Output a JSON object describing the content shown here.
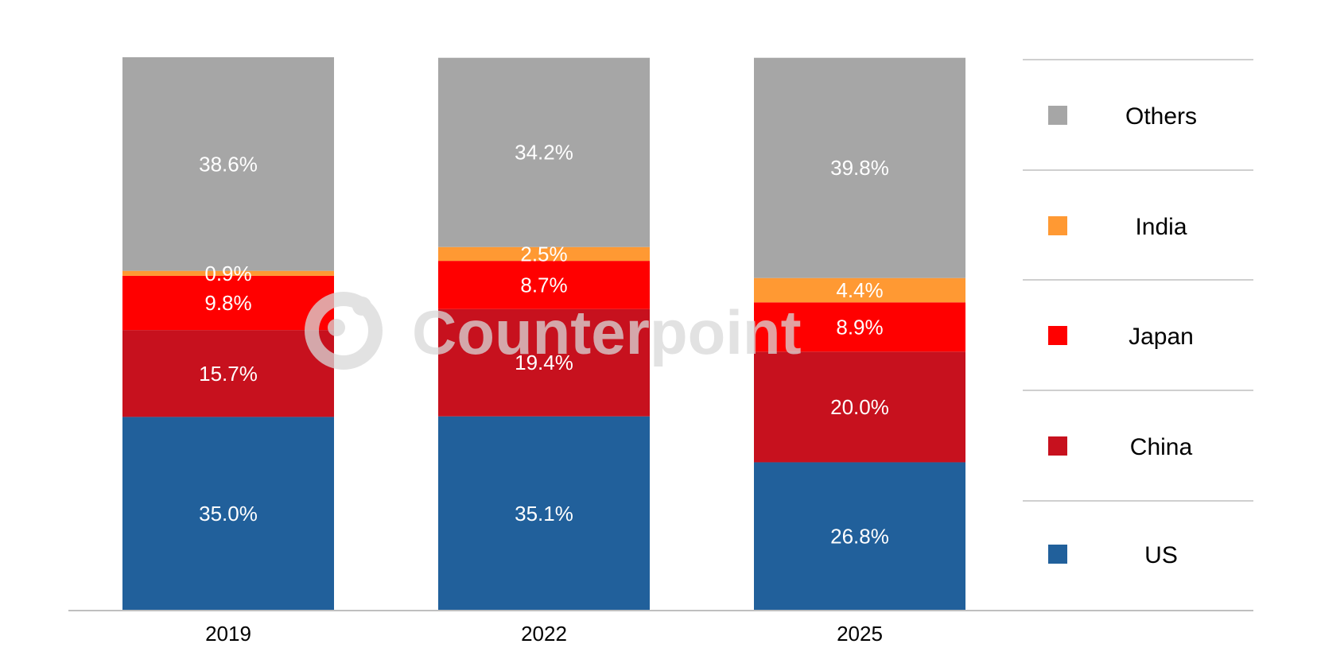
{
  "chart_data": {
    "type": "bar",
    "stacked": true,
    "categories": [
      "2019",
      "2022",
      "2025"
    ],
    "series": [
      {
        "name": "US",
        "color": "#21609b",
        "values": [
          35.0,
          35.1,
          26.8
        ],
        "labels": [
          "35.0%",
          "35.1%",
          "26.8%"
        ]
      },
      {
        "name": "China",
        "color": "#c7111e",
        "values": [
          15.7,
          19.4,
          20.0
        ],
        "labels": [
          "15.7%",
          "19.4%",
          "20.0%"
        ]
      },
      {
        "name": "Japan",
        "color": "#ff0000",
        "values": [
          9.8,
          8.7,
          8.9
        ],
        "labels": [
          "9.8%",
          "8.7%",
          "8.9%"
        ]
      },
      {
        "name": "India",
        "color": "#ff9933",
        "values": [
          0.9,
          2.5,
          4.4
        ],
        "labels": [
          "0.9%",
          "2.5%",
          "4.4%"
        ]
      },
      {
        "name": "Others",
        "color": "#a6a6a6",
        "values": [
          38.6,
          34.2,
          39.8
        ],
        "labels": [
          "38.6%",
          "34.2%",
          "39.8%"
        ]
      }
    ],
    "ylim": [
      0,
      100
    ],
    "grid": false,
    "legend_position": "right",
    "legend_order": [
      "Others",
      "India",
      "Japan",
      "China",
      "US"
    ]
  },
  "watermark": {
    "text": "Counterpoint",
    "icon": "counterpoint-logo-icon"
  }
}
